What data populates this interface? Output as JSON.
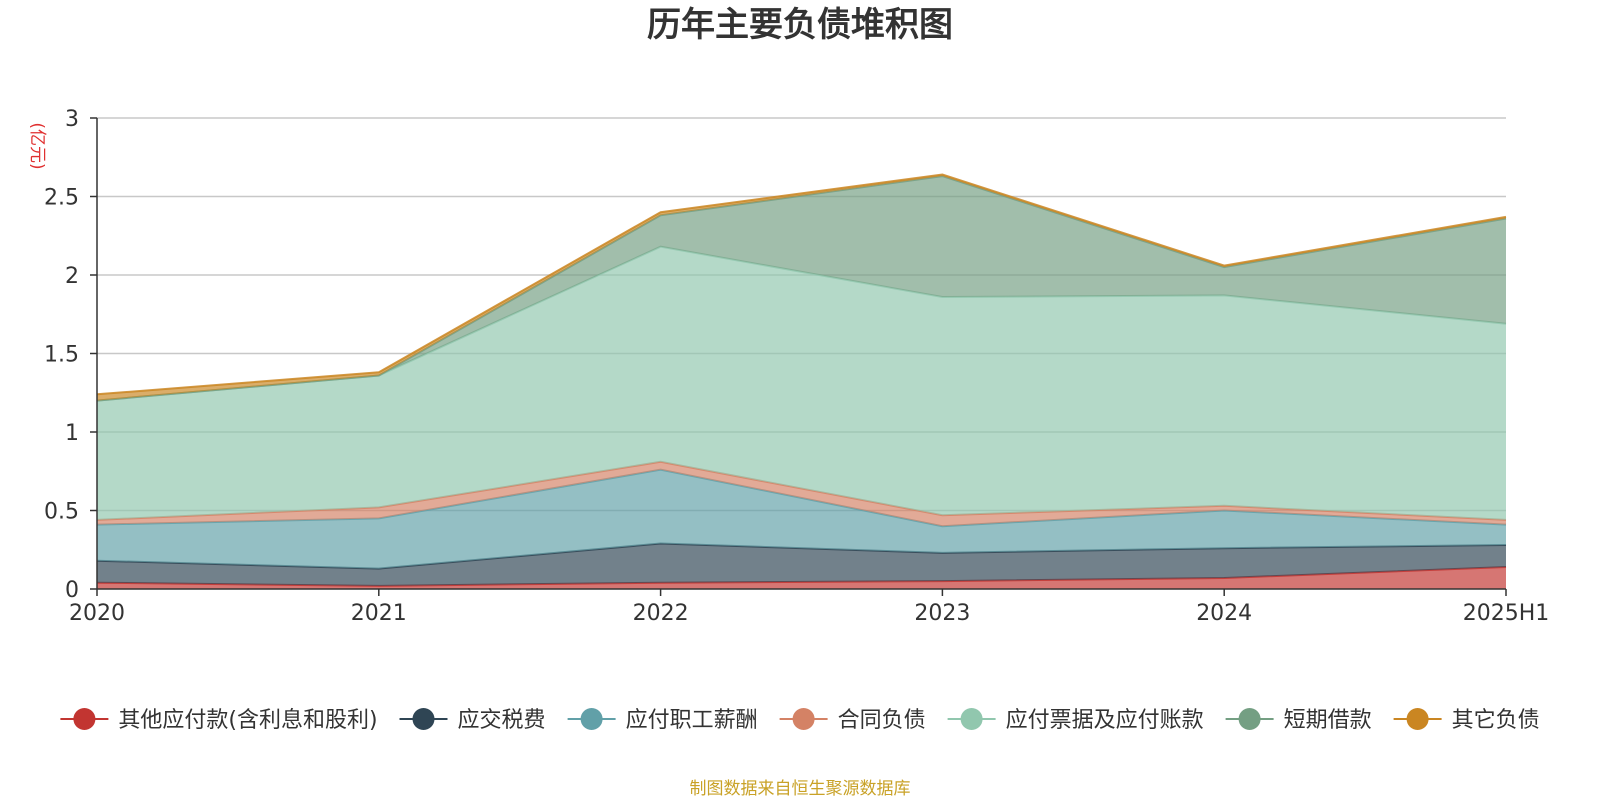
{
  "title": "历年主要负债堆积图",
  "unit_label": "(亿元)",
  "source_note": "制图数据来自恒生聚源数据库",
  "colors": {
    "unit": "#e03030",
    "source": "#c9a227"
  },
  "chart_data": {
    "type": "area",
    "stacked": true,
    "title": "历年主要负债堆积图",
    "ylabel": "(亿元)",
    "ylim": [
      0,
      3
    ],
    "yticks": [
      0,
      0.5,
      1,
      1.5,
      2,
      2.5,
      3
    ],
    "ytick_labels": [
      "0",
      "0.5",
      "1",
      "1.5",
      "2",
      "2.5",
      "3"
    ],
    "grid": true,
    "legend_position": "bottom",
    "categories": [
      "2020",
      "2021",
      "2022",
      "2023",
      "2024",
      "2025H1"
    ],
    "series": [
      {
        "name": "其他应付款(含利息和股利)",
        "color": "#c23531",
        "values": [
          0.04,
          0.02,
          0.04,
          0.05,
          0.07,
          0.14
        ]
      },
      {
        "name": "应交税费",
        "color": "#2f4554",
        "values": [
          0.14,
          0.11,
          0.25,
          0.18,
          0.19,
          0.14
        ]
      },
      {
        "name": "应付职工薪酬",
        "color": "#61a0a8",
        "values": [
          0.23,
          0.32,
          0.47,
          0.17,
          0.24,
          0.13
        ]
      },
      {
        "name": "合同负债",
        "color": "#d48265",
        "values": [
          0.03,
          0.07,
          0.05,
          0.07,
          0.03,
          0.03
        ]
      },
      {
        "name": "应付票据及应付账款",
        "color": "#91c7ae",
        "values": [
          0.76,
          0.84,
          1.37,
          1.39,
          1.34,
          1.25
        ]
      },
      {
        "name": "短期借款",
        "color": "#749f83",
        "values": [
          0.0,
          0.0,
          0.2,
          0.77,
          0.18,
          0.67
        ]
      },
      {
        "name": "其它负债",
        "color": "#ca8622",
        "values": [
          0.04,
          0.02,
          0.02,
          0.01,
          0.01,
          0.01
        ]
      }
    ]
  }
}
